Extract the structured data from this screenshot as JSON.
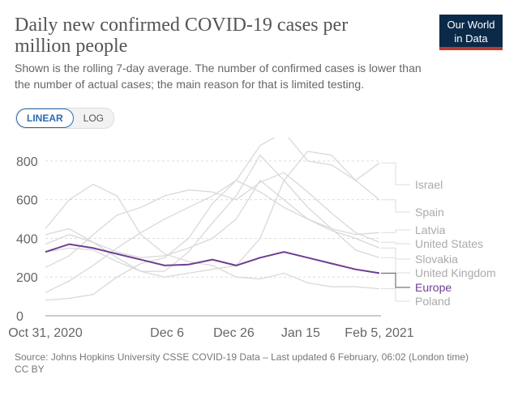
{
  "header": {
    "title": "Daily new confirmed COVID-19 cases per million people",
    "subtitle": "Shown is the rolling 7-day average. The number of confirmed cases is lower than the number of actual cases; the main reason for that is limited testing.",
    "logo_line1": "Our World",
    "logo_line2": "in Data"
  },
  "toggle": {
    "linear": "LINEAR",
    "log": "LOG"
  },
  "footer": {
    "source": "Source: Johns Hopkins University CSSE COVID-19 Data – Last updated 6 February, 06:02 (London time)",
    "license": "CC BY"
  },
  "colors": {
    "highlight": "#6d3e91",
    "background_series": "#d9d9d9",
    "grid": "#dddddd"
  },
  "chart_data": {
    "type": "line",
    "ylim": [
      0,
      900
    ],
    "y_ticks": [
      0,
      200,
      400,
      600,
      800
    ],
    "x_tick_labels": [
      "Oct 31, 2020",
      "Dec 6",
      "Dec 26",
      "Jan 15",
      "Feb 5, 2021"
    ],
    "grid": "horizontal dashed",
    "x_dates": [
      "2020-10-31",
      "2020-11-07",
      "2020-11-14",
      "2020-11-21",
      "2020-11-28",
      "2020-12-05",
      "2020-12-12",
      "2020-12-19",
      "2020-12-26",
      "2021-01-02",
      "2021-01-09",
      "2021-01-16",
      "2021-01-23",
      "2021-01-30",
      "2021-02-05"
    ],
    "series": [
      {
        "name": "Israel",
        "highlight": false,
        "values": [
          80,
          90,
          110,
          200,
          270,
          300,
          400,
          580,
          700,
          880,
          950,
          800,
          780,
          700,
          790
        ]
      },
      {
        "name": "Spain",
        "highlight": false,
        "values": [
          420,
          450,
          380,
          300,
          230,
          200,
          220,
          240,
          260,
          400,
          700,
          850,
          830,
          700,
          600
        ]
      },
      {
        "name": "Latvia",
        "highlight": false,
        "values": [
          120,
          180,
          260,
          350,
          430,
          500,
          560,
          620,
          700,
          640,
          560,
          500,
          450,
          420,
          430
        ]
      },
      {
        "name": "United States",
        "highlight": false,
        "values": [
          250,
          310,
          420,
          520,
          560,
          620,
          650,
          640,
          600,
          690,
          740,
          640,
          530,
          430,
          380
        ]
      },
      {
        "name": "Slovakia",
        "highlight": false,
        "values": [
          370,
          420,
          380,
          330,
          300,
          310,
          350,
          400,
          500,
          700,
          600,
          500,
          440,
          400,
          350
        ]
      },
      {
        "name": "United Kingdom",
        "highlight": false,
        "values": [
          330,
          350,
          340,
          280,
          230,
          230,
          330,
          480,
          620,
          830,
          700,
          560,
          450,
          340,
          300
        ]
      },
      {
        "name": "Poland",
        "highlight": false,
        "values": [
          450,
          600,
          680,
          620,
          420,
          320,
          280,
          260,
          200,
          190,
          220,
          170,
          150,
          150,
          140
        ]
      },
      {
        "name": "Europe",
        "highlight": true,
        "values": [
          330,
          370,
          350,
          320,
          290,
          260,
          265,
          290,
          260,
          300,
          330,
          300,
          270,
          240,
          220
        ]
      }
    ],
    "end_labels": [
      "Israel",
      "Spain",
      "Latvia",
      "United States",
      "Slovakia",
      "United Kingdom",
      "Europe",
      "Poland"
    ]
  }
}
